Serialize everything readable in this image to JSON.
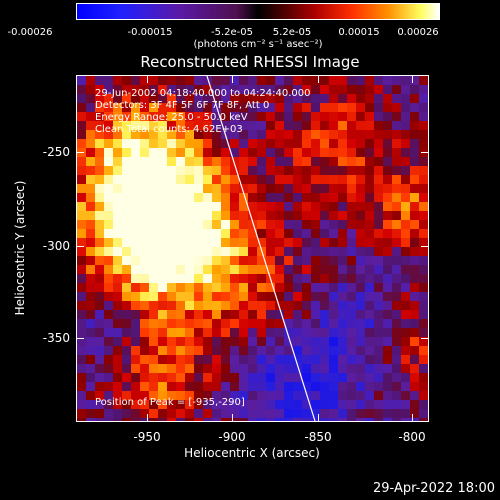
{
  "colorbar": {
    "ticks": [
      "-0.00026",
      "-0.00015",
      "-5.2e-05",
      "5.2e-05",
      "0.00015",
      "0.00026"
    ],
    "unit": "(photons cm⁻² s⁻¹ asec⁻²)",
    "colors": [
      "#0000ff",
      "#5a1aa8",
      "#000000",
      "#b00000",
      "#ff9000",
      "#ffffff"
    ]
  },
  "title": "Reconstructed RHESSI Image",
  "annotations": {
    "time": "29-Jun-2002 04:18:40.000 to 04:24:40.000",
    "detectors": "Detectors: 3F 4F 5F 6F 7F 8F, Att 0",
    "energy": "Energy Range: 25.0 - 50.0 keV",
    "clean": "Clean    Total counts: 4.62E+03",
    "peak": "Position of Peak = [-935,-290]"
  },
  "x_axis": {
    "label": "Heliocentric X (arcsec)",
    "ticks": [
      "-950",
      "-900",
      "-850",
      "-800"
    ],
    "range": [
      -982,
      -792
    ]
  },
  "y_axis": {
    "label": "Heliocentric Y (arcsec)",
    "ticks": [
      "-250",
      "-300",
      "-350"
    ],
    "range": [
      -397,
      -210
    ]
  },
  "timestamp": "29-Apr-2022 18:00"
}
